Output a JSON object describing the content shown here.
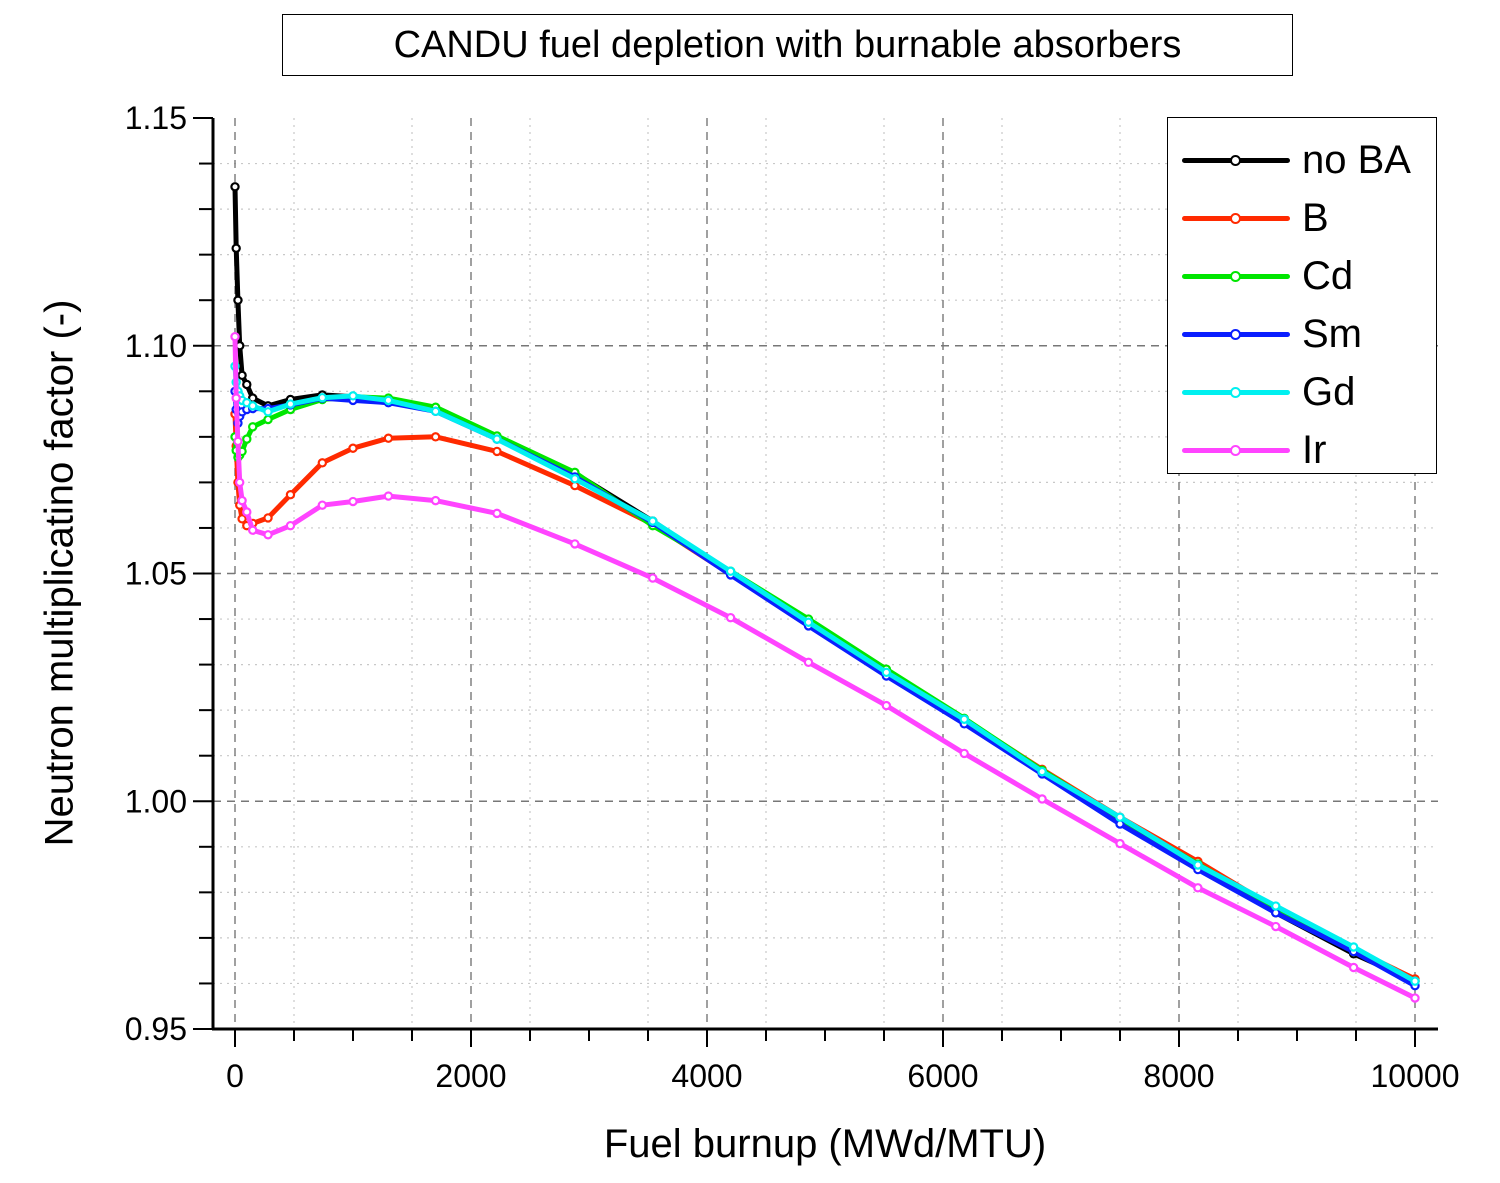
{
  "chart_data": {
    "type": "line",
    "title": "CANDU fuel depletion with burnable absorbers",
    "xlabel": "Fuel burnup (MWd/MTU)",
    "ylabel": "Neutron multiplicatino factor (-)",
    "xlim": [
      -200,
      10200
    ],
    "ylim": [
      0.95,
      1.15
    ],
    "xticks": [
      "0",
      "2000",
      "4000",
      "6000",
      "8000",
      "10000"
    ],
    "yticks": [
      "0.95",
      "1.00",
      "1.05",
      "1.10",
      "1.15"
    ],
    "grid": true,
    "legend_position": "upper right",
    "x": [
      0,
      10,
      25,
      40,
      60,
      100,
      150,
      280,
      470,
      740,
      1000,
      1300,
      1700,
      2220,
      2880,
      3540,
      4200,
      4860,
      5520,
      6180,
      6840,
      7500,
      8160,
      8820,
      9480,
      10000
    ],
    "series": [
      {
        "name": "no BA",
        "color": "#000000",
        "values": [
          1.1349,
          1.1214,
          1.11,
          1.1,
          1.0935,
          1.0915,
          1.0885,
          1.0868,
          1.0882,
          1.0892,
          1.0888,
          1.0882,
          1.0863,
          1.08,
          1.072,
          1.0615,
          1.05,
          1.0388,
          1.028,
          1.0175,
          1.0065,
          0.9955,
          0.9855,
          0.9755,
          0.9665,
          0.9605
        ]
      },
      {
        "name": "B",
        "color": "#ff2a00",
        "values": [
          1.085,
          1.078,
          1.07,
          1.065,
          1.062,
          1.0605,
          1.061,
          1.0622,
          1.0673,
          1.0743,
          1.0775,
          1.0797,
          1.08,
          1.0768,
          1.0693,
          1.0608,
          1.0498,
          1.039,
          1.0285,
          1.018,
          1.007,
          0.9965,
          0.9868,
          0.9765,
          0.9675,
          0.961
        ]
      },
      {
        "name": "Cd",
        "color": "#00e600",
        "values": [
          1.08,
          1.077,
          1.0755,
          1.076,
          1.0768,
          1.0795,
          1.0822,
          1.0838,
          1.086,
          1.0882,
          1.0888,
          1.0885,
          1.0865,
          1.0802,
          1.0722,
          1.0605,
          1.0505,
          1.04,
          1.029,
          1.0182,
          1.0068,
          0.9962,
          0.9862,
          0.9765,
          0.967,
          0.9605
        ]
      },
      {
        "name": "Sm",
        "color": "#0a1eff",
        "values": [
          1.09,
          1.086,
          1.083,
          1.0845,
          1.0855,
          1.086,
          1.0862,
          1.0862,
          1.087,
          1.0885,
          1.088,
          1.0875,
          1.0856,
          1.0795,
          1.0712,
          1.0612,
          1.0497,
          1.0385,
          1.0275,
          1.017,
          1.006,
          0.995,
          0.985,
          0.9755,
          0.967,
          0.9595
        ]
      },
      {
        "name": "Gd",
        "color": "#00f0f0",
        "values": [
          1.0955,
          1.092,
          1.09,
          1.089,
          1.088,
          1.0875,
          1.0868,
          1.0855,
          1.0872,
          1.0886,
          1.089,
          1.088,
          1.0856,
          1.0795,
          1.0708,
          1.0615,
          1.0505,
          1.0393,
          1.0283,
          1.018,
          1.0065,
          0.9965,
          0.986,
          0.977,
          0.968,
          0.9605
        ]
      },
      {
        "name": "Ir",
        "color": "#ff44ff",
        "values": [
          1.102,
          1.0885,
          1.079,
          1.07,
          1.066,
          1.0635,
          1.0595,
          1.0585,
          1.0605,
          1.065,
          1.0658,
          1.067,
          1.066,
          1.0632,
          1.0565,
          1.049,
          1.0403,
          1.0305,
          1.021,
          1.0105,
          1.0005,
          0.9907,
          0.981,
          0.9725,
          0.9635,
          0.9568
        ]
      }
    ]
  },
  "legend": {
    "items": [
      {
        "label": "no BA",
        "color": "#000000"
      },
      {
        "label": "B",
        "color": "#ff2a00"
      },
      {
        "label": "Cd",
        "color": "#00e600"
      },
      {
        "label": "Sm",
        "color": "#0a1eff"
      },
      {
        "label": "Gd",
        "color": "#00f0f0"
      },
      {
        "label": "Ir",
        "color": "#ff44ff"
      }
    ]
  }
}
